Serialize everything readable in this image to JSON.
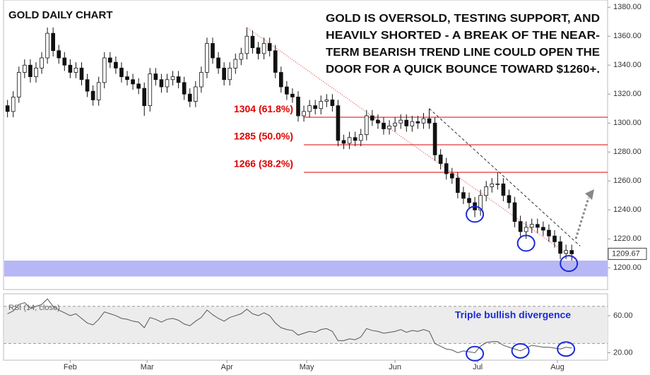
{
  "chart_data": [
    {
      "type": "candlestick",
      "title": "GOLD DAILY CHART",
      "annotation_lines": [
        "GOLD IS OVERSOLD, TESTING SUPPORT, AND",
        "HEAVILY SHORTED - A BREAK OF THE NEAR-",
        "TERM BEARISH TREND LINE COULD OPEN THE",
        "DOOR FOR A QUICK BOUNCE TOWARD $1260+."
      ],
      "open": [
        1312,
        1308,
        1318,
        1335,
        1340,
        1332,
        1338,
        1345,
        1362,
        1350,
        1345,
        1340,
        1335,
        1338,
        1330,
        1322,
        1316,
        1328,
        1345,
        1342,
        1338,
        1332,
        1330,
        1327,
        1324,
        1312,
        1334,
        1330,
        1325,
        1330,
        1332,
        1328,
        1320,
        1315,
        1325,
        1335,
        1355,
        1345,
        1338,
        1330,
        1338,
        1344,
        1348,
        1360,
        1352,
        1348,
        1355,
        1350,
        1335,
        1325,
        1320,
        1318,
        1305,
        1308,
        1312,
        1310,
        1315,
        1316,
        1312,
        1288,
        1286,
        1290,
        1288,
        1292,
        1305,
        1302,
        1300,
        1296,
        1298,
        1300,
        1302,
        1298,
        1301,
        1300,
        1303,
        1300,
        1278,
        1272,
        1265,
        1262,
        1252,
        1248,
        1245,
        1240,
        1250,
        1256,
        1258,
        1258,
        1250,
        1245,
        1232,
        1225,
        1228,
        1230,
        1228,
        1226,
        1222,
        1218,
        1210,
        1212
      ],
      "high": [
        1316,
        1322,
        1339,
        1344,
        1344,
        1342,
        1349,
        1366,
        1366,
        1354,
        1349,
        1344,
        1342,
        1342,
        1334,
        1326,
        1332,
        1349,
        1349,
        1346,
        1342,
        1336,
        1334,
        1331,
        1328,
        1338,
        1338,
        1334,
        1334,
        1336,
        1336,
        1332,
        1324,
        1329,
        1339,
        1359,
        1359,
        1349,
        1342,
        1342,
        1348,
        1352,
        1366,
        1364,
        1356,
        1359,
        1359,
        1354,
        1339,
        1329,
        1324,
        1322,
        1312,
        1316,
        1316,
        1319,
        1320,
        1320,
        1316,
        1292,
        1294,
        1294,
        1296,
        1309,
        1309,
        1306,
        1304,
        1302,
        1304,
        1306,
        1306,
        1305,
        1305,
        1307,
        1310,
        1304,
        1282,
        1276,
        1269,
        1266,
        1256,
        1252,
        1249,
        1254,
        1260,
        1262,
        1266,
        1262,
        1254,
        1249,
        1236,
        1232,
        1234,
        1234,
        1232,
        1230,
        1226,
        1222,
        1216,
        1216
      ],
      "low": [
        1304,
        1304,
        1314,
        1331,
        1328,
        1328,
        1334,
        1341,
        1346,
        1341,
        1336,
        1331,
        1331,
        1326,
        1318,
        1312,
        1312,
        1324,
        1338,
        1334,
        1328,
        1326,
        1323,
        1320,
        1305,
        1308,
        1326,
        1321,
        1321,
        1326,
        1324,
        1316,
        1311,
        1311,
        1321,
        1331,
        1341,
        1334,
        1326,
        1326,
        1334,
        1340,
        1344,
        1348,
        1344,
        1344,
        1346,
        1331,
        1321,
        1316,
        1314,
        1301,
        1301,
        1304,
        1306,
        1306,
        1311,
        1308,
        1284,
        1282,
        1282,
        1284,
        1284,
        1288,
        1298,
        1296,
        1292,
        1292,
        1294,
        1296,
        1294,
        1294,
        1296,
        1296,
        1296,
        1274,
        1268,
        1261,
        1258,
        1248,
        1244,
        1241,
        1235,
        1236,
        1246,
        1252,
        1254,
        1246,
        1241,
        1228,
        1221,
        1220,
        1224,
        1224,
        1222,
        1218,
        1214,
        1206,
        1206,
        1205
      ],
      "close": [
        1308,
        1318,
        1335,
        1340,
        1332,
        1338,
        1345,
        1362,
        1350,
        1345,
        1340,
        1335,
        1338,
        1330,
        1322,
        1316,
        1328,
        1345,
        1342,
        1338,
        1332,
        1330,
        1327,
        1324,
        1312,
        1334,
        1330,
        1325,
        1330,
        1332,
        1328,
        1320,
        1315,
        1325,
        1335,
        1355,
        1345,
        1338,
        1330,
        1338,
        1344,
        1348,
        1360,
        1352,
        1348,
        1355,
        1350,
        1335,
        1325,
        1320,
        1318,
        1305,
        1308,
        1312,
        1310,
        1315,
        1316,
        1312,
        1288,
        1286,
        1290,
        1288,
        1292,
        1305,
        1302,
        1300,
        1296,
        1298,
        1300,
        1302,
        1298,
        1301,
        1300,
        1303,
        1300,
        1278,
        1272,
        1265,
        1262,
        1252,
        1248,
        1245,
        1240,
        1250,
        1256,
        1258,
        1258,
        1250,
        1245,
        1232,
        1225,
        1228,
        1230,
        1228,
        1226,
        1222,
        1218,
        1210,
        1212,
        1209.67
      ],
      "xlim": [
        -0.7,
        105.3
      ],
      "xticks": [
        {
          "value": 11,
          "label": "Feb"
        },
        {
          "value": 24.5,
          "label": "Mar"
        },
        {
          "value": 38.5,
          "label": "Apr"
        },
        {
          "value": 52.5,
          "label": "May"
        },
        {
          "value": 68,
          "label": "Jun"
        },
        {
          "value": 82.5,
          "label": "Jul"
        },
        {
          "value": 96.5,
          "label": "Aug"
        }
      ],
      "ylim": [
        1185,
        1385
      ],
      "yticks": [
        {
          "value": 1200,
          "label": "1200.00"
        },
        {
          "value": 1220,
          "label": "1220.00"
        },
        {
          "value": 1240,
          "label": "1240.00"
        },
        {
          "value": 1260,
          "label": "1260.00"
        },
        {
          "value": 1280,
          "label": "1280.00"
        },
        {
          "value": 1300,
          "label": "1300.00"
        },
        {
          "value": 1320,
          "label": "1320.00"
        },
        {
          "value": 1340,
          "label": "1340.00"
        },
        {
          "value": 1360,
          "label": "1360.00"
        },
        {
          "value": 1380,
          "label": "1380.00"
        }
      ],
      "levels": [
        {
          "value": 1304,
          "label": "1304 (61.8%)"
        },
        {
          "value": 1285,
          "label": "1285 (50.0%)"
        },
        {
          "value": 1266,
          "label": "1266 (38.2%)"
        }
      ],
      "level_color": "#e00000",
      "support_zone": [
        1194,
        1205
      ],
      "support_color": "#b7b7f5",
      "trendlines": [
        {
          "x": [
            42,
            99.5
          ],
          "y": [
            1366,
            1206
          ],
          "color": "#e03030",
          "dash": "1,2"
        },
        {
          "x": [
            74,
            100.5
          ],
          "y": [
            1310,
            1215
          ],
          "color": "#333333",
          "dash": "4,3"
        }
      ],
      "highlights": {
        "x": [
          82,
          91,
          98.5
        ],
        "y": [
          1237,
          1217,
          1203
        ]
      },
      "highlight_color": "#1b2bd6"
    },
    {
      "type": "line",
      "label": "RSI (14, close)",
      "annotation": "Triple bullish divergence",
      "values": [
        62,
        65,
        72,
        74,
        68,
        70,
        72,
        78,
        70,
        66,
        63,
        60,
        62,
        57,
        52,
        50,
        56,
        64,
        62,
        60,
        57,
        56,
        54,
        53,
        47,
        58,
        56,
        53,
        56,
        57,
        55,
        51,
        49,
        54,
        58,
        66,
        61,
        57,
        54,
        58,
        60,
        62,
        67,
        62,
        60,
        63,
        60,
        52,
        47,
        45,
        44,
        39,
        41,
        43,
        42,
        45,
        46,
        43,
        33,
        33,
        35,
        34,
        37,
        46,
        44,
        43,
        41,
        42,
        43,
        45,
        42,
        44,
        43,
        45,
        43,
        30,
        27,
        24,
        23,
        20,
        22,
        21,
        20,
        27,
        31,
        32,
        32,
        28,
        26,
        24,
        22,
        25,
        28,
        27,
        26,
        26,
        25,
        24,
        26,
        25
      ],
      "color": "#555555",
      "xlim": [
        -0.7,
        105.3
      ],
      "ylim": [
        12,
        82
      ],
      "yticks": [
        {
          "value": 60,
          "label": "60.00"
        },
        {
          "value": 20,
          "label": "20.00"
        }
      ],
      "levels": [
        30,
        70
      ],
      "highlights": {
        "x": [
          82,
          90,
          98
        ],
        "y": [
          19,
          22,
          24
        ]
      },
      "highlight_color": "#1b2bd6"
    }
  ]
}
